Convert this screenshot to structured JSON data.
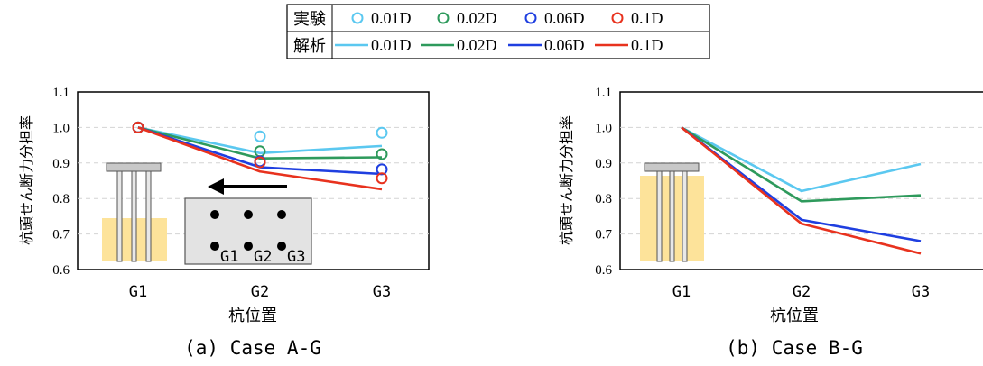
{
  "legend": {
    "rows": [
      {
        "label": "実験",
        "kind": "marker",
        "entries": [
          {
            "text": "0.01D",
            "color": "#5bc8f0"
          },
          {
            "text": "0.02D",
            "color": "#2e9a5c"
          },
          {
            "text": "0.06D",
            "color": "#1f3fe0"
          },
          {
            "text": "0.1D",
            "color": "#e8321e"
          }
        ]
      },
      {
        "label": "解析",
        "kind": "line",
        "entries": [
          {
            "text": "0.01D",
            "color": "#5bc8f0"
          },
          {
            "text": "0.02D",
            "color": "#2e9a5c"
          },
          {
            "text": "0.06D",
            "color": "#1f3fe0"
          },
          {
            "text": "0.1D",
            "color": "#e8321e"
          }
        ]
      }
    ]
  },
  "chart_data": [
    {
      "type": "line",
      "caption": "(a) Case A-G",
      "xlabel": "杭位置",
      "ylabel": "杭頭せん断力分担率",
      "categories": [
        "G1",
        "G2",
        "G3"
      ],
      "ylim": [
        0.6,
        1.1
      ],
      "yticks": [
        "0.6",
        "0.7",
        "0.8",
        "0.9",
        "1.0",
        "1.1"
      ],
      "grid": true,
      "series": [
        {
          "name": "0.01D",
          "kind": "analysis",
          "color": "#5bc8f0",
          "values": [
            1.0,
            0.928,
            0.948
          ]
        },
        {
          "name": "0.02D",
          "kind": "analysis",
          "color": "#2e9a5c",
          "values": [
            1.0,
            0.913,
            0.916
          ]
        },
        {
          "name": "0.06D",
          "kind": "analysis",
          "color": "#1f3fe0",
          "values": [
            1.0,
            0.888,
            0.869
          ]
        },
        {
          "name": "0.1D",
          "kind": "analysis",
          "color": "#e8321e",
          "values": [
            1.0,
            0.876,
            0.826
          ]
        },
        {
          "name": "0.01D",
          "kind": "experiment",
          "color": "#5bc8f0",
          "values": [
            1.0,
            0.975,
            0.985
          ]
        },
        {
          "name": "0.02D",
          "kind": "experiment",
          "color": "#2e9a5c",
          "values": [
            1.0,
            0.933,
            0.925
          ]
        },
        {
          "name": "0.06D",
          "kind": "experiment",
          "color": "#1f3fe0",
          "values": [
            1.0,
            0.905,
            0.882
          ]
        },
        {
          "name": "0.1D",
          "kind": "experiment",
          "color": "#e8321e",
          "values": [
            1.0,
            0.902,
            0.857
          ]
        }
      ],
      "inset": {
        "pile_labels": [
          "G1",
          "G2",
          "G3"
        ]
      }
    },
    {
      "type": "line",
      "caption": "(b) Case B-G",
      "xlabel": "杭位置",
      "ylabel": "杭頭せん断力分担率",
      "categories": [
        "G1",
        "G2",
        "G3"
      ],
      "ylim": [
        0.6,
        1.1
      ],
      "yticks": [
        "0.6",
        "0.7",
        "0.8",
        "0.9",
        "1.0",
        "1.1"
      ],
      "grid": true,
      "series": [
        {
          "name": "0.01D",
          "kind": "analysis",
          "color": "#5bc8f0",
          "values": [
            1.0,
            0.821,
            0.897
          ]
        },
        {
          "name": "0.02D",
          "kind": "analysis",
          "color": "#2e9a5c",
          "values": [
            1.0,
            0.792,
            0.809
          ]
        },
        {
          "name": "0.06D",
          "kind": "analysis",
          "color": "#1f3fe0",
          "values": [
            1.0,
            0.74,
            0.68
          ]
        },
        {
          "name": "0.1D",
          "kind": "analysis",
          "color": "#e8321e",
          "values": [
            1.0,
            0.729,
            0.645
          ]
        }
      ]
    }
  ]
}
